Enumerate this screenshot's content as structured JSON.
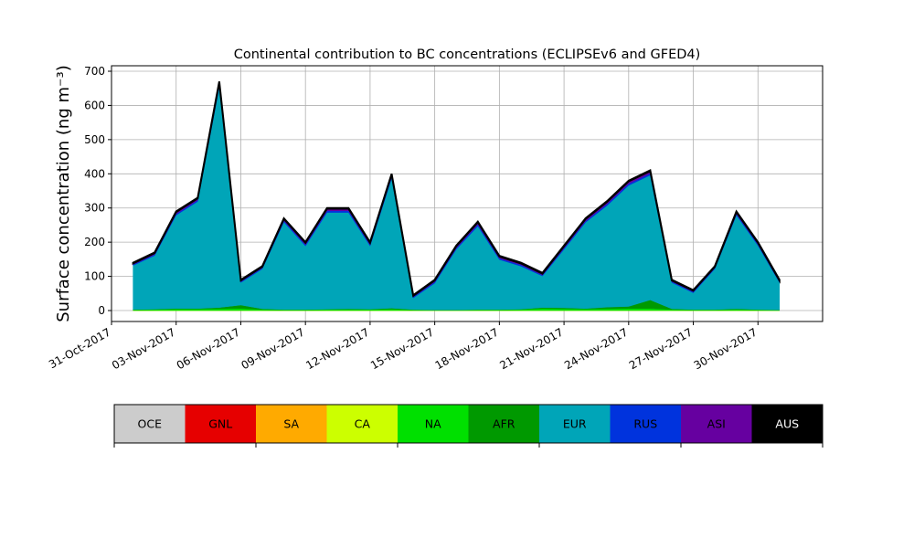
{
  "chart_data": {
    "type": "stacked_area",
    "title": "Continental contribution to BC concentrations (ECLIPSEv6 and GFED4)",
    "y_label": "Surface concentration (ng m⁻³)",
    "x": [
      "2017-11-01",
      "2017-11-02",
      "2017-11-03",
      "2017-11-04",
      "2017-11-05",
      "2017-11-06",
      "2017-11-07",
      "2017-11-08",
      "2017-11-09",
      "2017-11-10",
      "2017-11-11",
      "2017-11-12",
      "2017-11-13",
      "2017-11-14",
      "2017-11-15",
      "2017-11-16",
      "2017-11-17",
      "2017-11-18",
      "2017-11-19",
      "2017-11-20",
      "2017-11-21",
      "2017-11-22",
      "2017-11-23",
      "2017-11-24",
      "2017-11-25",
      "2017-11-26",
      "2017-11-27",
      "2017-11-28",
      "2017-11-29",
      "2017-11-30",
      "2017-12-01"
    ],
    "xlim": [
      "2017-10-31",
      "2017-12-03"
    ],
    "xticks": [
      {
        "value": "2017-10-31",
        "label": "31-Oct-2017"
      },
      {
        "value": "2017-11-03",
        "label": "03-Nov-2017"
      },
      {
        "value": "2017-11-06",
        "label": "06-Nov-2017"
      },
      {
        "value": "2017-11-09",
        "label": "09-Nov-2017"
      },
      {
        "value": "2017-11-12",
        "label": "12-Nov-2017"
      },
      {
        "value": "2017-11-15",
        "label": "15-Nov-2017"
      },
      {
        "value": "2017-11-18",
        "label": "18-Nov-2017"
      },
      {
        "value": "2017-11-21",
        "label": "21-Nov-2017"
      },
      {
        "value": "2017-11-24",
        "label": "24-Nov-2017"
      },
      {
        "value": "2017-11-27",
        "label": "27-Nov-2017"
      },
      {
        "value": "2017-11-30",
        "label": "30-Nov-2017"
      }
    ],
    "ylim": [
      -32,
      716
    ],
    "yticks": [
      0,
      100,
      200,
      300,
      400,
      500,
      600,
      700
    ],
    "grid": true,
    "series": [
      {
        "name": "OCE",
        "color": "#cccccc",
        "values": [
          0,
          0,
          0,
          0,
          0,
          0,
          0,
          0,
          0,
          0,
          0,
          0,
          0,
          0,
          0,
          0,
          0,
          0,
          0,
          0,
          0,
          0,
          0,
          0,
          0,
          0,
          0,
          0,
          0,
          0,
          0
        ]
      },
      {
        "name": "GNL",
        "color": "#e60000",
        "values": [
          0,
          0,
          0,
          0,
          0,
          0,
          0,
          0,
          0,
          0,
          0,
          0,
          0,
          0,
          0,
          0,
          0,
          0,
          0,
          0,
          0,
          0,
          0,
          0,
          0,
          0,
          0,
          0,
          0,
          0,
          0
        ]
      },
      {
        "name": "SA",
        "color": "#ffaa00",
        "values": [
          0,
          0,
          0,
          0,
          0,
          0,
          0,
          0,
          0,
          0,
          0,
          0,
          0,
          0,
          0,
          0,
          0,
          0,
          0,
          0,
          0,
          0,
          0,
          0,
          0,
          0,
          0,
          0,
          0,
          0,
          0
        ]
      },
      {
        "name": "CA",
        "color": "#ccff00",
        "values": [
          0,
          0,
          0,
          0,
          0,
          0,
          0,
          0,
          0,
          0,
          0,
          0,
          0,
          0,
          0,
          0,
          0,
          0,
          0,
          0,
          0,
          0,
          0,
          0,
          0,
          0,
          0,
          0,
          0,
          0,
          0
        ]
      },
      {
        "name": "NA",
        "color": "#00e000",
        "values": [
          2,
          3,
          4,
          4,
          5,
          6,
          3,
          2,
          2,
          3,
          3,
          3,
          4,
          2,
          1,
          1,
          2,
          2,
          3,
          6,
          5,
          4,
          5,
          6,
          6,
          3,
          2,
          2,
          3,
          2,
          1
        ]
      },
      {
        "name": "AFR",
        "color": "#009900",
        "values": [
          1,
          1,
          2,
          2,
          4,
          10,
          2,
          1,
          1,
          1,
          2,
          1,
          3,
          1,
          1,
          1,
          1,
          1,
          1,
          3,
          3,
          2,
          5,
          6,
          25,
          2,
          1,
          1,
          2,
          1,
          1
        ]
      },
      {
        "name": "EUR",
        "color": "#00a5b8",
        "values": [
          129,
          157,
          273,
          313,
          645,
          66,
          117,
          256,
          186,
          283,
          282,
          185,
          380,
          34,
          78,
          177,
          244,
          146,
          126,
          92,
          171,
          252,
          297,
          354,
          365,
          77,
          49,
          119,
          274,
          187,
          80
        ]
      },
      {
        "name": "RUS",
        "color": "#0033dd",
        "values": [
          3,
          3,
          4,
          4,
          6,
          3,
          3,
          4,
          4,
          5,
          5,
          4,
          5,
          3,
          4,
          4,
          5,
          4,
          4,
          3,
          4,
          4,
          5,
          5,
          5,
          3,
          3,
          3,
          4,
          4,
          3
        ]
      },
      {
        "name": "ASI",
        "color": "#6600a0",
        "values": [
          3,
          4,
          5,
          5,
          8,
          3,
          3,
          5,
          5,
          6,
          6,
          5,
          6,
          3,
          4,
          5,
          6,
          5,
          4,
          4,
          5,
          6,
          6,
          7,
          7,
          3,
          3,
          3,
          5,
          4,
          3
        ]
      },
      {
        "name": "AUS",
        "color": "#000000",
        "values": [
          2,
          2,
          2,
          2,
          2,
          2,
          2,
          2,
          2,
          2,
          2,
          2,
          2,
          2,
          2,
          2,
          2,
          2,
          2,
          2,
          2,
          2,
          2,
          2,
          2,
          2,
          2,
          2,
          2,
          2,
          2
        ]
      }
    ]
  }
}
